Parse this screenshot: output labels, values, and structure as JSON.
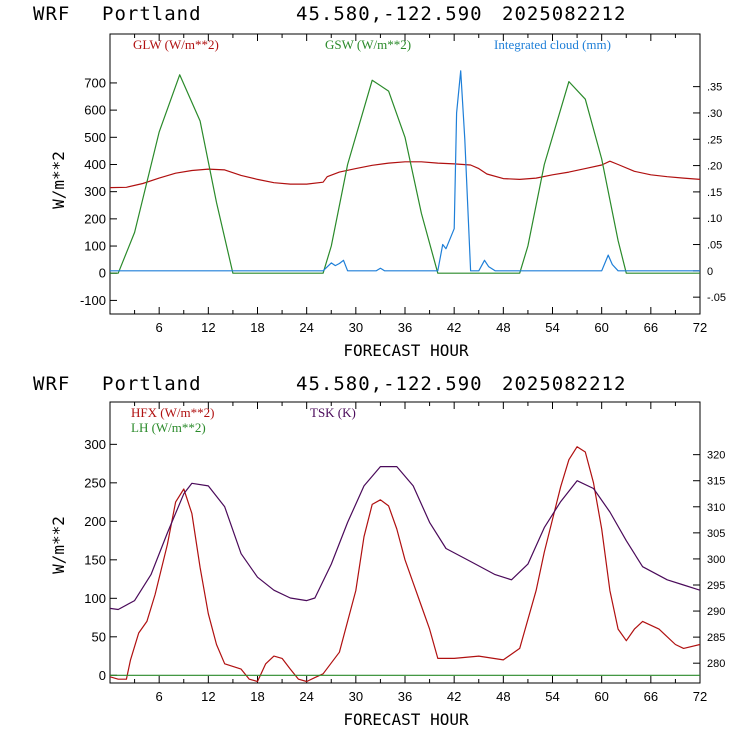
{
  "colors": {
    "red": "#b01010",
    "green": "#2a8a2a",
    "blue": "#1e7fd8",
    "purple": "#4a0a5a",
    "axis": "#000000"
  },
  "chart_data": [
    {
      "type": "line",
      "header": {
        "model": "WRF",
        "location": "Portland",
        "coords": "45.580,-122.590",
        "init": "2025082212"
      },
      "xlabel": "FORECAST HOUR",
      "ylabel": "W/m**2",
      "xlim": [
        0,
        72
      ],
      "ylim": [
        -150,
        880
      ],
      "y2lim": [
        -0.082,
        0.45
      ],
      "x_ticks": [
        "6",
        "12",
        "18",
        "24",
        "30",
        "36",
        "42",
        "48",
        "54",
        "60",
        "66",
        "72"
      ],
      "y_ticks": [
        "-100",
        "0",
        "100",
        "200",
        "300",
        "400",
        "500",
        "600",
        "700"
      ],
      "y2_ticks": [
        "-.05",
        "0",
        ".05",
        ".10",
        ".15",
        ".20",
        ".25",
        ".30",
        ".35"
      ],
      "legend_position": "top",
      "series": [
        {
          "name": "GLW (W/m**2)",
          "axis": "left",
          "color": "red",
          "x": [
            0,
            2,
            4,
            6,
            8,
            10,
            12,
            14,
            16,
            18,
            20,
            22,
            24,
            26,
            26.5,
            28,
            30,
            32,
            34,
            36,
            38,
            40,
            42,
            44,
            45,
            46,
            48,
            50,
            52,
            54,
            56,
            58,
            60,
            61,
            62,
            64,
            66,
            68,
            70,
            72
          ],
          "values": [
            315,
            316,
            330,
            350,
            368,
            378,
            383,
            380,
            360,
            345,
            333,
            328,
            328,
            335,
            355,
            372,
            385,
            397,
            405,
            410,
            410,
            405,
            402,
            398,
            385,
            365,
            348,
            345,
            350,
            362,
            372,
            385,
            398,
            412,
            400,
            375,
            362,
            355,
            350,
            345
          ]
        },
        {
          "name": "GSW (W/m**2)",
          "axis": "left",
          "color": "green",
          "x": [
            0,
            1,
            3,
            6,
            8.5,
            11,
            13,
            15,
            16,
            25,
            26,
            27,
            29,
            32,
            34,
            36,
            38,
            40,
            41,
            49,
            50,
            51,
            53,
            56,
            58,
            60,
            62,
            63,
            64,
            72
          ],
          "values": [
            0,
            0,
            150,
            520,
            730,
            560,
            260,
            0,
            0,
            0,
            0,
            100,
            400,
            710,
            670,
            500,
            220,
            0,
            0,
            0,
            0,
            100,
            400,
            705,
            640,
            420,
            120,
            0,
            0,
            0
          ]
        },
        {
          "name": "Integrated cloud (mm)",
          "axis": "right",
          "color": "blue",
          "x": [
            0,
            26,
            27,
            27.5,
            28,
            28.5,
            29,
            30,
            32.5,
            33,
            33.5,
            40,
            40.6,
            41,
            42,
            42.3,
            42.8,
            43.3,
            44,
            45,
            45.7,
            46.2,
            47,
            60,
            60.8,
            61.3,
            62,
            72
          ],
          "values": [
            0,
            0,
            0.015,
            0.01,
            0.014,
            0.02,
            0,
            0,
            0,
            0.005,
            0,
            0,
            0.05,
            0.042,
            0.08,
            0.3,
            0.38,
            0.25,
            0,
            0,
            0.02,
            0.008,
            0,
            0,
            0.03,
            0.012,
            0,
            0
          ]
        }
      ]
    },
    {
      "type": "line",
      "header": {
        "model": "WRF",
        "location": "Portland",
        "coords": "45.580,-122.590",
        "init": "2025082212"
      },
      "xlabel": "FORECAST HOUR",
      "ylabel": "W/m**2",
      "xlim": [
        0,
        72
      ],
      "ylim": [
        -10,
        355
      ],
      "y2lim": [
        276.2,
        330.1
      ],
      "x_ticks": [
        "6",
        "12",
        "18",
        "24",
        "30",
        "36",
        "42",
        "48",
        "54",
        "60",
        "66",
        "72"
      ],
      "y_ticks": [
        "0",
        "50",
        "100",
        "150",
        "200",
        "250",
        "300"
      ],
      "y2_ticks": [
        "280",
        "285",
        "290",
        "295",
        "300",
        "305",
        "310",
        "315",
        "320"
      ],
      "legend_position": "top-left",
      "series": [
        {
          "name": "HFX (W/m**2)",
          "axis": "left",
          "color": "red",
          "x": [
            0,
            1,
            2,
            2.5,
            3.5,
            4.5,
            5.5,
            7,
            8,
            9,
            10,
            11,
            12,
            13,
            14,
            16,
            17,
            18,
            19,
            20,
            21,
            22,
            23,
            24,
            25,
            26,
            28,
            30,
            31,
            32,
            33,
            34,
            35,
            36,
            37,
            38,
            39,
            40,
            41,
            42,
            45,
            48,
            50,
            52,
            53,
            55,
            56,
            57,
            58,
            59,
            60,
            61,
            62,
            63,
            64,
            65,
            67,
            69,
            70,
            72
          ],
          "values": [
            -2,
            -5,
            -5,
            20,
            55,
            70,
            105,
            170,
            225,
            242,
            210,
            140,
            80,
            40,
            15,
            8,
            -5,
            -8,
            15,
            25,
            22,
            8,
            -5,
            -8,
            -3,
            2,
            30,
            110,
            180,
            222,
            228,
            220,
            190,
            150,
            120,
            90,
            60,
            22,
            22,
            22,
            25,
            20,
            35,
            110,
            160,
            245,
            280,
            297,
            290,
            250,
            190,
            110,
            60,
            45,
            60,
            70,
            60,
            40,
            35,
            40
          ]
        },
        {
          "name": "TSK (K)",
          "axis": "right",
          "color": "purple",
          "x": [
            0,
            1,
            3,
            5,
            7,
            9,
            10,
            12,
            14,
            16,
            18,
            20,
            22,
            24,
            25,
            27,
            29,
            31,
            33,
            35,
            37,
            39,
            41,
            44,
            47,
            49,
            51,
            53,
            55,
            57,
            59,
            61,
            63,
            65,
            68,
            70,
            72
          ],
          "values": [
            290.5,
            290.3,
            292,
            297,
            305,
            312.5,
            314.5,
            314,
            310,
            301,
            296.5,
            294,
            292.5,
            292,
            292.5,
            299,
            307,
            314,
            317.7,
            317.7,
            314,
            307,
            302,
            299.5,
            297,
            296,
            299,
            306,
            311,
            315,
            313.5,
            309,
            303.5,
            298.5,
            296,
            295,
            294
          ]
        },
        {
          "name": "LH (W/m**2)",
          "axis": "left",
          "color": "green",
          "x": [
            0,
            72
          ],
          "values": [
            0,
            0
          ]
        }
      ]
    }
  ]
}
